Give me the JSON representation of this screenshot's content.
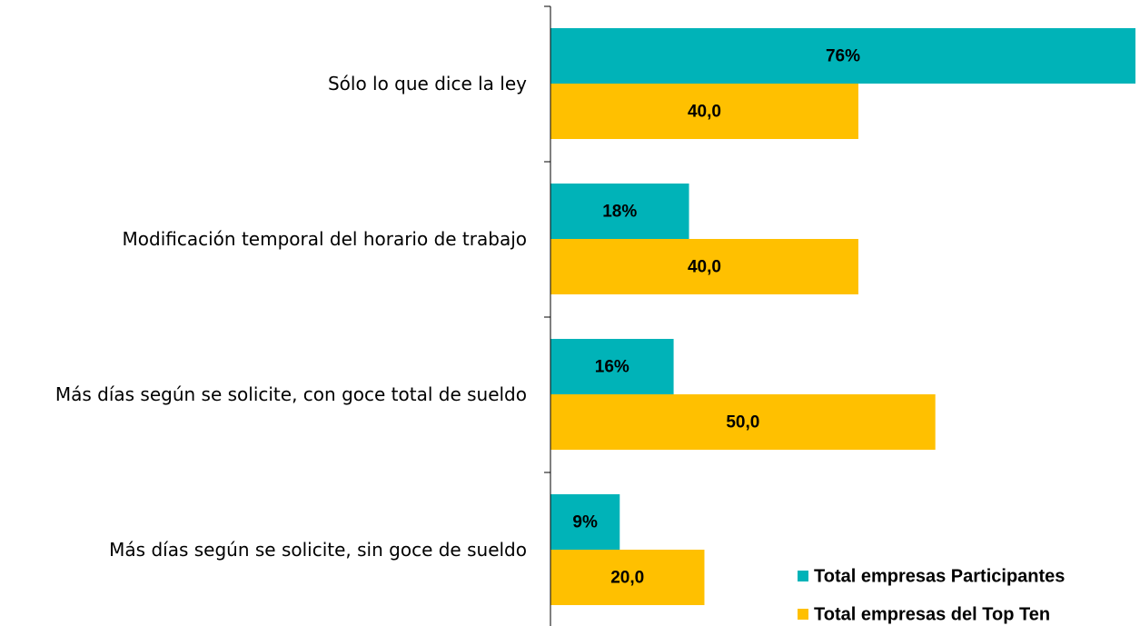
{
  "chart_data": {
    "type": "bar",
    "orientation": "horizontal",
    "categories": [
      "Sólo lo que dice la ley",
      "Modificación temporal del horario de trabajo",
      "Más días según se solicite, con goce total de sueldo",
      "Más días según se solicite, sin goce de sueldo"
    ],
    "series": [
      {
        "name": "Total empresas Participantes",
        "color": "#00b3b8",
        "values": [
          76,
          18,
          16,
          9
        ],
        "value_labels": [
          "76%",
          "18%",
          "16%",
          "9%"
        ]
      },
      {
        "name": "Total empresas del Top Ten",
        "color": "#ffc000",
        "values": [
          40,
          40,
          50,
          20
        ],
        "value_labels": [
          "40,0",
          "40,0",
          "50,0",
          "20,0"
        ]
      }
    ],
    "legend": "bottom-right"
  }
}
